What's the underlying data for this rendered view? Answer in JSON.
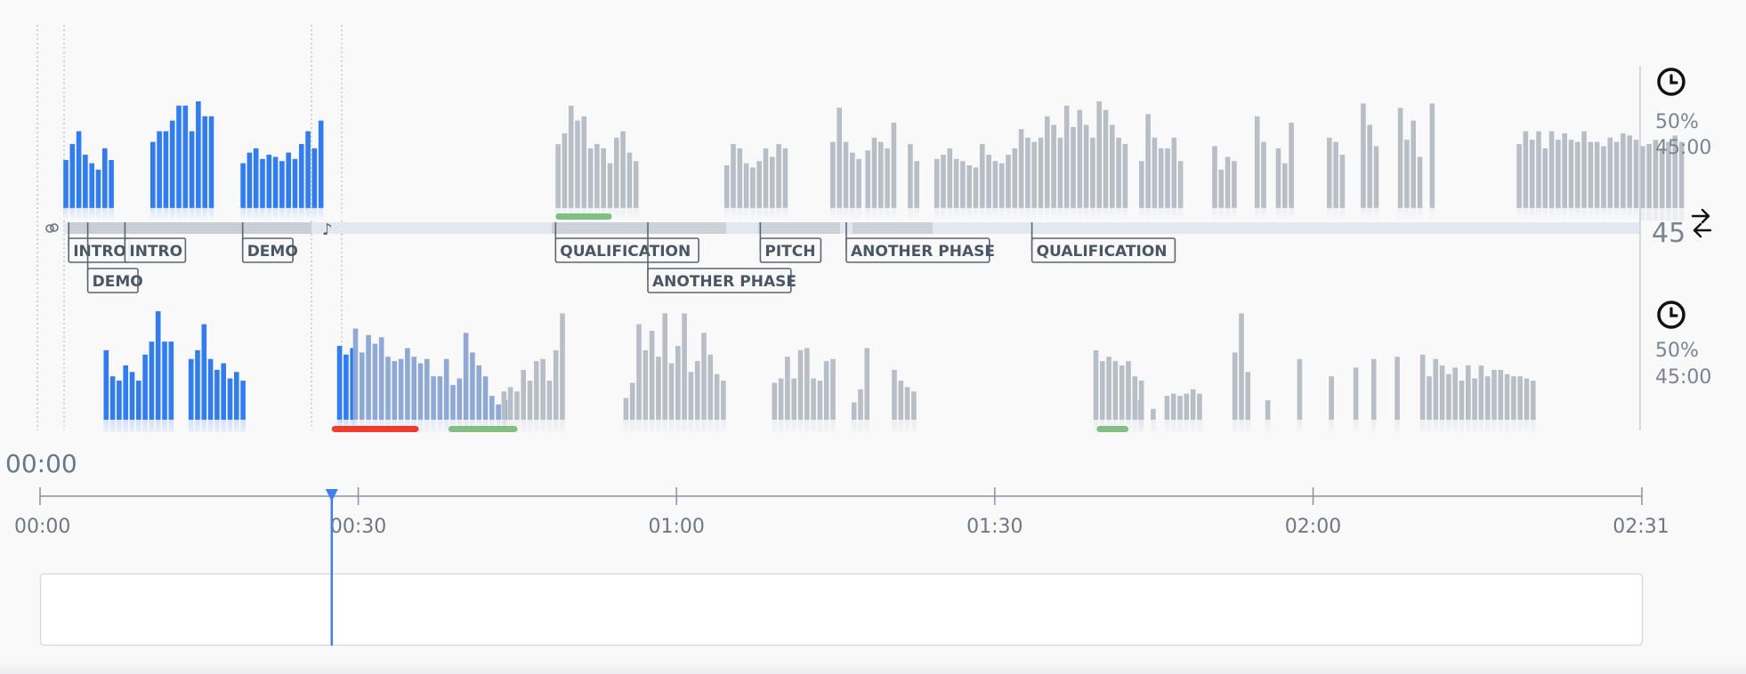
{
  "colors": {
    "active": "#2f7cf6",
    "played": "#8fa9d6",
    "inactive": "#b8bec6",
    "red": "#ef3b2c",
    "green": "#7fbf7f",
    "label_border": "#5a6673"
  },
  "timeline": {
    "duration_seconds": 151,
    "playhead_seconds": 27.5,
    "current_time_display": "00:00",
    "ticks": [
      {
        "seconds": 0,
        "label": "00:00"
      },
      {
        "seconds": 30,
        "label": "00:30"
      },
      {
        "seconds": 60,
        "label": "01:00"
      },
      {
        "seconds": 90,
        "label": "01:30"
      },
      {
        "seconds": 120,
        "label": "02:00"
      },
      {
        "seconds": 151,
        "label": "02:31"
      }
    ]
  },
  "speaker_top": {
    "talk_ratio": "50%",
    "talk_time": "45:00",
    "icon": "clock-icon"
  },
  "speaker_bottom": {
    "talk_ratio": "50%",
    "talk_time": "45:00",
    "icon": "clock-icon"
  },
  "switches": {
    "count": "45",
    "icon": "swap-arrows-icon"
  },
  "phases": [
    {
      "label": "INTRO",
      "seconds": 2.7,
      "row": 0
    },
    {
      "label": "DEMO",
      "seconds": 4.5,
      "row": 1
    },
    {
      "label": "INTRO",
      "seconds": 8.0,
      "row": 0
    },
    {
      "label": "DEMO",
      "seconds": 19.1,
      "row": 0
    },
    {
      "label": "QUALIFICATION",
      "seconds": 48.6,
      "row": 0
    },
    {
      "label": "ANOTHER PHASE",
      "seconds": 57.3,
      "row": 1
    },
    {
      "label": "PITCH",
      "seconds": 67.9,
      "row": 0
    },
    {
      "label": "ANOTHER PHASE",
      "seconds": 76.0,
      "row": 0
    },
    {
      "label": "QUALIFICATION",
      "seconds": 93.5,
      "row": 0
    }
  ],
  "highlights": [
    {
      "track": "top",
      "color": "green",
      "start_seconds": 48.6,
      "end_seconds": 53.9
    },
    {
      "track": "bottom",
      "color": "red",
      "start_seconds": 27.5,
      "end_seconds": 35.7
    },
    {
      "track": "bottom",
      "color": "green",
      "start_seconds": 38.5,
      "end_seconds": 45.0
    },
    {
      "track": "bottom",
      "color": "green",
      "start_seconds": 99.6,
      "end_seconds": 102.6
    }
  ],
  "top_segments": [
    {
      "start_seconds": 2.2,
      "state": "active",
      "heights": [
        0.45,
        0.6,
        0.72,
        0.5,
        0.42,
        0.36,
        0.56,
        0.45
      ]
    },
    {
      "start_seconds": 10.4,
      "state": "active",
      "heights": [
        0.62,
        0.72,
        0.72,
        0.82,
        0.96,
        0.96,
        0.72,
        1.0,
        0.86,
        0.86
      ]
    },
    {
      "start_seconds": 18.9,
      "state": "active",
      "heights": [
        0.42,
        0.52,
        0.56,
        0.46,
        0.5,
        0.48,
        0.44,
        0.52,
        0.46,
        0.6,
        0.72,
        0.56,
        0.82
      ]
    },
    {
      "start_seconds": 48.6,
      "state": "inactive",
      "heights": [
        0.6,
        0.7,
        0.96,
        0.82,
        0.86,
        0.56,
        0.6,
        0.56,
        0.42,
        0.66,
        0.72,
        0.52,
        0.44
      ]
    },
    {
      "start_seconds": 64.5,
      "state": "inactive",
      "heights": [
        0.4,
        0.6,
        0.56,
        0.42,
        0.38,
        0.44,
        0.56,
        0.48,
        0.6,
        0.56
      ]
    },
    {
      "start_seconds": 74.5,
      "state": "inactive",
      "heights": [
        0.62,
        0.94,
        0.62,
        0.52,
        0.46
      ]
    },
    {
      "start_seconds": 77.8,
      "state": "inactive",
      "heights": [
        0.54,
        0.66,
        0.62,
        0.56,
        0.8
      ]
    },
    {
      "start_seconds": 81.8,
      "state": "inactive",
      "heights": [
        0.6,
        0.44
      ]
    },
    {
      "start_seconds": 84.3,
      "state": "inactive",
      "heights": [
        0.46,
        0.5,
        0.56,
        0.46,
        0.44,
        0.4,
        0.38,
        0.6,
        0.5,
        0.44,
        0.42,
        0.5,
        0.56,
        0.74,
        0.66,
        0.62,
        0.66,
        0.86,
        0.78,
        0.66,
        0.96,
        0.76,
        0.92,
        0.78,
        0.66,
        1.0,
        0.92,
        0.78,
        0.66,
        0.6
      ]
    },
    {
      "start_seconds": 103.6,
      "state": "inactive",
      "heights": [
        0.44,
        0.88,
        0.66,
        0.56,
        0.56,
        0.66,
        0.44
      ]
    },
    {
      "start_seconds": 110.5,
      "state": "inactive",
      "heights": [
        0.58,
        0.36,
        0.48,
        0.44
      ]
    },
    {
      "start_seconds": 114.5,
      "state": "inactive",
      "heights": [
        0.86,
        0.62
      ]
    },
    {
      "start_seconds": 116.5,
      "state": "inactive",
      "heights": [
        0.56,
        0.42,
        0.8
      ]
    },
    {
      "start_seconds": 121.3,
      "state": "inactive",
      "heights": [
        0.66,
        0.62,
        0.5
      ]
    },
    {
      "start_seconds": 124.5,
      "state": "inactive",
      "heights": [
        0.98,
        0.78,
        0.58
      ]
    },
    {
      "start_seconds": 128.0,
      "state": "inactive",
      "heights": [
        0.94,
        0.64,
        0.82,
        0.48
      ]
    },
    {
      "start_seconds": 131.0,
      "state": "inactive",
      "heights": [
        0.98
      ]
    },
    {
      "start_seconds": 139.2,
      "state": "inactive",
      "heights": [
        0.6,
        0.72,
        0.64,
        0.72,
        0.56,
        0.72,
        0.64,
        0.7,
        0.64,
        0.62,
        0.72,
        0.62,
        0.62,
        0.58,
        0.66,
        0.62,
        0.7,
        0.68,
        0.64,
        0.58,
        0.6,
        0.64,
        0.56,
        0.62,
        0.68,
        0.62
      ]
    }
  ],
  "bottom_segments": [
    {
      "start_seconds": 6.0,
      "state": "active",
      "heights": [
        0.64,
        0.4,
        0.36,
        0.5,
        0.44,
        0.36,
        0.6,
        0.72,
        1.0,
        0.72,
        0.72
      ]
    },
    {
      "start_seconds": 14.0,
      "state": "active",
      "heights": [
        0.56,
        0.64,
        0.88,
        0.56,
        0.46,
        0.52,
        0.38,
        0.44,
        0.36
      ]
    },
    {
      "start_seconds": 28.0,
      "state": "active",
      "heights": [
        0.68,
        0.6,
        0.66
      ]
    },
    {
      "start_seconds": 29.5,
      "state": "played",
      "heights": [
        0.84,
        0.62,
        0.78,
        0.7,
        0.76,
        0.58,
        0.54,
        0.56,
        0.66,
        0.58,
        0.52,
        0.56,
        0.4,
        0.4,
        0.56,
        0.32,
        0.38,
        0.8,
        0.62,
        0.5,
        0.4,
        0.22,
        0.14,
        0.18
      ]
    },
    {
      "start_seconds": 43.5,
      "state": "inactive",
      "heights": [
        0.26,
        0.3,
        0.26,
        0.46,
        0.36,
        0.54,
        0.56,
        0.36,
        0.64,
        0.98
      ]
    },
    {
      "start_seconds": 55.0,
      "state": "inactive",
      "heights": [
        0.2,
        0.34,
        0.88,
        0.64,
        0.82,
        0.58,
        0.98,
        0.52,
        0.68,
        0.98,
        0.44,
        0.54,
        0.8,
        0.6,
        0.42,
        0.36
      ]
    },
    {
      "start_seconds": 69.0,
      "state": "inactive",
      "heights": [
        0.34,
        0.38,
        0.58,
        0.38,
        0.64,
        0.66,
        0.38,
        0.36,
        0.54,
        0.56
      ]
    },
    {
      "start_seconds": 76.5,
      "state": "inactive",
      "heights": [
        0.16,
        0.28,
        0.66
      ]
    },
    {
      "start_seconds": 80.3,
      "state": "inactive",
      "heights": [
        0.46,
        0.36,
        0.3,
        0.26
      ]
    },
    {
      "start_seconds": 99.3,
      "state": "inactive",
      "heights": [
        0.64,
        0.54,
        0.58,
        0.54,
        0.5,
        0.54,
        0.4,
        0.36
      ]
    },
    {
      "start_seconds": 103.5,
      "state": "inactive",
      "heights": [
        0.18
      ]
    },
    {
      "start_seconds": 104.7,
      "state": "inactive",
      "heights": [
        0.1
      ]
    },
    {
      "start_seconds": 106.0,
      "state": "inactive",
      "heights": [
        0.22,
        0.24,
        0.22,
        0.24,
        0.28,
        0.24
      ]
    },
    {
      "start_seconds": 112.4,
      "state": "inactive",
      "heights": [
        0.62,
        0.98,
        0.44
      ]
    },
    {
      "start_seconds": 115.5,
      "state": "inactive",
      "heights": [
        0.18
      ]
    },
    {
      "start_seconds": 118.5,
      "state": "inactive",
      "heights": [
        0.56
      ]
    },
    {
      "start_seconds": 121.5,
      "state": "inactive",
      "heights": [
        0.4
      ]
    },
    {
      "start_seconds": 123.8,
      "state": "inactive",
      "heights": [
        0.48
      ]
    },
    {
      "start_seconds": 125.5,
      "state": "inactive",
      "heights": [
        0.56
      ]
    },
    {
      "start_seconds": 127.7,
      "state": "inactive",
      "heights": [
        0.58
      ]
    },
    {
      "start_seconds": 130.1,
      "state": "inactive",
      "heights": [
        0.6,
        0.4,
        0.56,
        0.5,
        0.42,
        0.48,
        0.36,
        0.5,
        0.38,
        0.5,
        0.4,
        0.46,
        0.46,
        0.42,
        0.4,
        0.4,
        0.38,
        0.36
      ]
    }
  ]
}
